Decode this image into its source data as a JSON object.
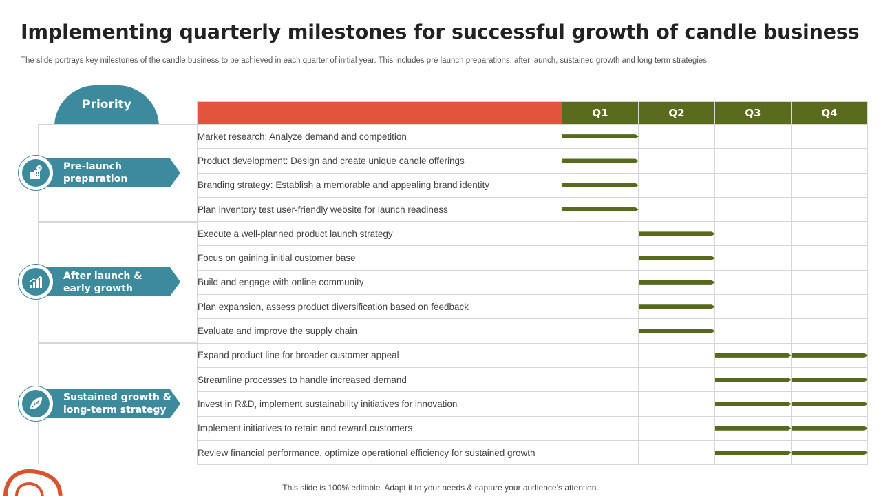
{
  "title": "Implementing quarterly milestones for successful growth of candle business",
  "subtitle": "The slide portrays key milestones of the candle business to be achieved in each quarter of initial year.  This includes pre launch preparations, after launch, sustained growth and long term strategies.",
  "priority_label": "Priority",
  "quarters": [
    "Q1",
    "Q2",
    "Q3",
    "Q4"
  ],
  "groups": [
    {
      "label": "Pre-launch\npreparation",
      "icon": "building-clock-icon"
    },
    {
      "label": "After launch &\nearly growth",
      "icon": "growth-chart-icon"
    },
    {
      "label": "Sustained growth &\nlong-term strategy",
      "icon": "leaf-icon"
    }
  ],
  "tasks": [
    {
      "text": "Market research: Analyze demand and competition",
      "quarters": [
        1
      ]
    },
    {
      "text": "Product development:  Design and create unique candle offerings",
      "quarters": [
        1
      ]
    },
    {
      "text": "Branding strategy: Establish a memorable and appealing brand identity",
      "quarters": [
        1
      ]
    },
    {
      "text": "Plan inventory  test user-friendly website for launch readiness",
      "quarters": [
        1
      ]
    },
    {
      "text": "Execute a well-planned  product launch strategy",
      "quarters": [
        2
      ]
    },
    {
      "text": "Focus on gaining initial customer base",
      "quarters": [
        2
      ]
    },
    {
      "text": "Build and engage with online community",
      "quarters": [
        2
      ]
    },
    {
      "text": "Plan expansion,  assess product diversification  based on feedback",
      "quarters": [
        2
      ]
    },
    {
      "text": "Evaluate and improve  the supply chain",
      "quarters": [
        2
      ]
    },
    {
      "text": "Expand product line for broader customer appeal",
      "quarters": [
        3,
        4
      ]
    },
    {
      "text": "Streamline processes to handle increased demand",
      "quarters": [
        3,
        4
      ]
    },
    {
      "text": "Invest  in R&D,  implement  sustainability initiatives for innovation",
      "quarters": [
        3,
        4
      ]
    },
    {
      "text": "Implement  initiatives to retain and reward customers",
      "quarters": [
        3,
        4
      ]
    },
    {
      "text": "Review  financial performance,  optimize operational efficiency for sustained growth",
      "quarters": [
        3,
        4
      ]
    }
  ],
  "footer": "This slide is 100% editable. Adapt it to your needs & capture your audience’s attention.",
  "colors": {
    "teal": "#3d8a9c",
    "header_red": "#e2553c",
    "quarter_green": "#5b6b1e",
    "bar_green": "#556a1c",
    "corner_orange": "#d9532f"
  }
}
